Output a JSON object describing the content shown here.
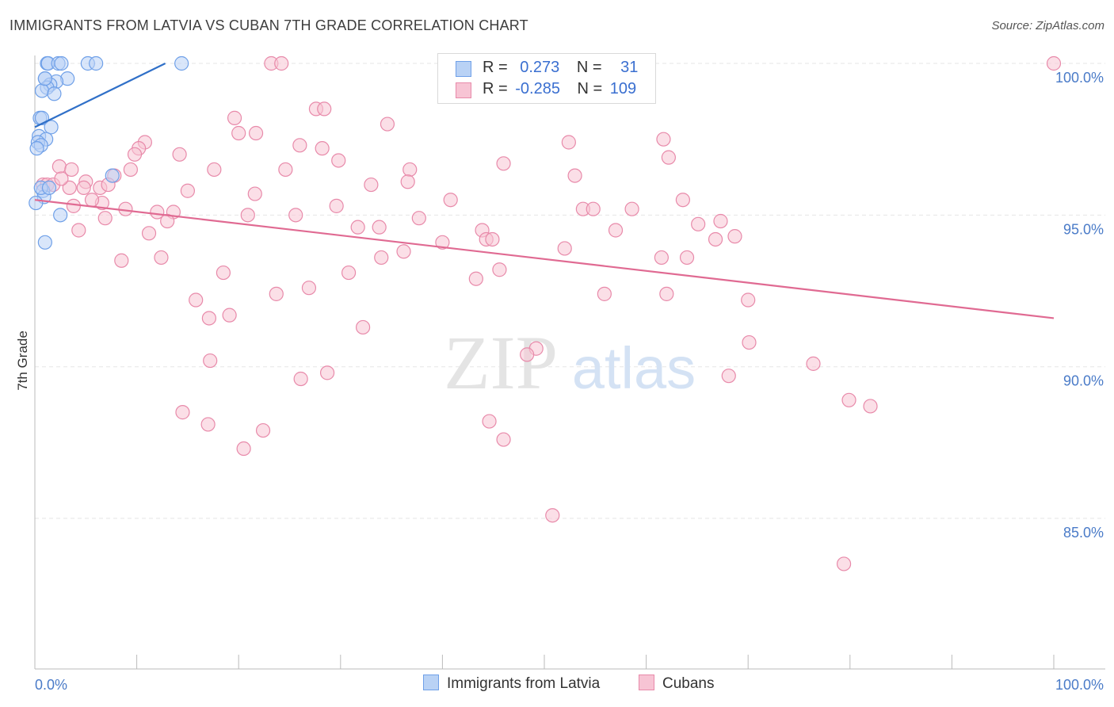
{
  "title": "IMMIGRANTS FROM LATVIA VS CUBAN 7TH GRADE CORRELATION CHART",
  "source": "Source: ZipAtlas.com",
  "watermark": {
    "zip": "ZIP",
    "atlas": "atlas"
  },
  "colors": {
    "latvia": "#6fa0e8",
    "latvia_fill": "#b9d2f5",
    "latvia_line": "#3070c8",
    "cuban": "#e88aaa",
    "cuban_fill": "#f7c4d4",
    "cuban_line": "#e06a92",
    "tick": "#4a7bc8"
  },
  "legend": {
    "rows": [
      {
        "r_label": "R =",
        "r_value": "0.273",
        "n_label": "N =",
        "n_value": "31"
      },
      {
        "r_label": "R =",
        "r_value": "-0.285",
        "n_label": "N =",
        "n_value": "109"
      }
    ]
  },
  "bottom_legend": [
    "Immigrants from Latvia",
    "Cubans"
  ],
  "chart_data": {
    "type": "scatter",
    "title": "IMMIGRANTS FROM LATVIA VS CUBAN 7TH GRADE CORRELATION CHART",
    "xlabel": "",
    "ylabel": "7th Grade",
    "xlim": [
      0,
      100
    ],
    "ylim": [
      80,
      100.5
    ],
    "x_tick_labels": [
      "0.0%",
      "100.0%"
    ],
    "y_ticks": [
      85,
      90,
      95,
      100
    ],
    "y_tick_labels": [
      "85.0%",
      "90.0%",
      "95.0%",
      "100.0%"
    ],
    "grid": true,
    "series": [
      {
        "name": "Immigrants from Latvia",
        "trend": [
          [
            0,
            97.9
          ],
          [
            12.8,
            100.0
          ]
        ],
        "points": [
          [
            1.2,
            100.0
          ],
          [
            1.3,
            100.0
          ],
          [
            2.3,
            100.0
          ],
          [
            2.6,
            100.0
          ],
          [
            5.2,
            100.0
          ],
          [
            6.0,
            100.0
          ],
          [
            14.4,
            100.0
          ],
          [
            1.0,
            99.5
          ],
          [
            3.2,
            99.5
          ],
          [
            2.1,
            99.4
          ],
          [
            1.5,
            99.3
          ],
          [
            1.2,
            99.2
          ],
          [
            0.7,
            99.1
          ],
          [
            1.9,
            99.0
          ],
          [
            0.5,
            98.2
          ],
          [
            0.7,
            98.2
          ],
          [
            1.6,
            97.9
          ],
          [
            0.4,
            97.6
          ],
          [
            1.1,
            97.5
          ],
          [
            0.3,
            97.4
          ],
          [
            0.6,
            97.3
          ],
          [
            0.2,
            97.2
          ],
          [
            7.6,
            96.3
          ],
          [
            0.8,
            95.8
          ],
          [
            0.9,
            95.6
          ],
          [
            0.1,
            95.4
          ],
          [
            2.5,
            95.0
          ],
          [
            1.0,
            94.1
          ],
          [
            1.0,
            99.5
          ],
          [
            0.6,
            95.9
          ],
          [
            1.4,
            95.9
          ]
        ]
      },
      {
        "name": "Cubans",
        "trend": [
          [
            0,
            95.5
          ],
          [
            100,
            91.6
          ]
        ],
        "points": [
          [
            23.2,
            100.0
          ],
          [
            24.2,
            100.0
          ],
          [
            100.0,
            100.0
          ],
          [
            27.6,
            98.5
          ],
          [
            28.4,
            98.5
          ],
          [
            19.6,
            98.2
          ],
          [
            34.6,
            98.0
          ],
          [
            20.0,
            97.7
          ],
          [
            21.7,
            97.7
          ],
          [
            10.8,
            97.4
          ],
          [
            26.0,
            97.3
          ],
          [
            28.2,
            97.2
          ],
          [
            52.4,
            97.4
          ],
          [
            61.7,
            97.5
          ],
          [
            10.2,
            97.2
          ],
          [
            9.8,
            97.0
          ],
          [
            14.2,
            97.0
          ],
          [
            29.8,
            96.8
          ],
          [
            46.0,
            96.7
          ],
          [
            62.2,
            96.9
          ],
          [
            2.4,
            96.6
          ],
          [
            3.6,
            96.5
          ],
          [
            9.4,
            96.5
          ],
          [
            17.6,
            96.5
          ],
          [
            24.6,
            96.5
          ],
          [
            36.8,
            96.5
          ],
          [
            53.0,
            96.3
          ],
          [
            7.8,
            96.3
          ],
          [
            5.0,
            96.1
          ],
          [
            36.6,
            96.1
          ],
          [
            0.8,
            96.0
          ],
          [
            1.2,
            96.0
          ],
          [
            1.8,
            96.0
          ],
          [
            3.4,
            95.9
          ],
          [
            6.4,
            95.9
          ],
          [
            4.8,
            95.9
          ],
          [
            33.0,
            96.0
          ],
          [
            15.0,
            95.8
          ],
          [
            21.6,
            95.7
          ],
          [
            40.8,
            95.5
          ],
          [
            63.6,
            95.5
          ],
          [
            6.6,
            95.4
          ],
          [
            3.8,
            95.3
          ],
          [
            8.9,
            95.2
          ],
          [
            12.0,
            95.1
          ],
          [
            13.6,
            95.1
          ],
          [
            29.6,
            95.3
          ],
          [
            53.8,
            95.2
          ],
          [
            54.8,
            95.2
          ],
          [
            58.6,
            95.2
          ],
          [
            6.9,
            94.9
          ],
          [
            13.0,
            94.8
          ],
          [
            20.9,
            95.0
          ],
          [
            25.6,
            95.0
          ],
          [
            37.7,
            94.9
          ],
          [
            67.3,
            94.8
          ],
          [
            4.3,
            94.5
          ],
          [
            11.2,
            94.4
          ],
          [
            31.7,
            94.6
          ],
          [
            33.8,
            94.6
          ],
          [
            43.9,
            94.5
          ],
          [
            57.0,
            94.5
          ],
          [
            65.1,
            94.7
          ],
          [
            44.3,
            94.2
          ],
          [
            44.9,
            94.2
          ],
          [
            40.0,
            94.1
          ],
          [
            68.7,
            94.3
          ],
          [
            66.8,
            94.2
          ],
          [
            52.0,
            93.9
          ],
          [
            36.2,
            93.8
          ],
          [
            8.5,
            93.5
          ],
          [
            12.4,
            93.6
          ],
          [
            34.0,
            93.6
          ],
          [
            64.0,
            93.6
          ],
          [
            61.5,
            93.6
          ],
          [
            18.5,
            93.1
          ],
          [
            30.8,
            93.1
          ],
          [
            45.6,
            93.2
          ],
          [
            43.3,
            92.9
          ],
          [
            26.9,
            92.6
          ],
          [
            23.7,
            92.4
          ],
          [
            55.9,
            92.4
          ],
          [
            62.0,
            92.4
          ],
          [
            15.8,
            92.2
          ],
          [
            70.0,
            92.2
          ],
          [
            17.1,
            91.6
          ],
          [
            19.1,
            91.7
          ],
          [
            32.2,
            91.3
          ],
          [
            70.1,
            90.8
          ],
          [
            49.2,
            90.6
          ],
          [
            48.3,
            90.4
          ],
          [
            17.2,
            90.2
          ],
          [
            76.4,
            90.1
          ],
          [
            28.7,
            89.8
          ],
          [
            68.1,
            89.7
          ],
          [
            26.1,
            89.6
          ],
          [
            79.9,
            88.9
          ],
          [
            82.0,
            88.7
          ],
          [
            14.5,
            88.5
          ],
          [
            17.0,
            88.1
          ],
          [
            44.6,
            88.2
          ],
          [
            22.4,
            87.9
          ],
          [
            46.0,
            87.6
          ],
          [
            20.5,
            87.3
          ],
          [
            50.8,
            85.1
          ],
          [
            79.4,
            83.5
          ],
          [
            2.6,
            96.2
          ],
          [
            7.2,
            96.0
          ],
          [
            5.6,
            95.5
          ]
        ]
      }
    ]
  }
}
